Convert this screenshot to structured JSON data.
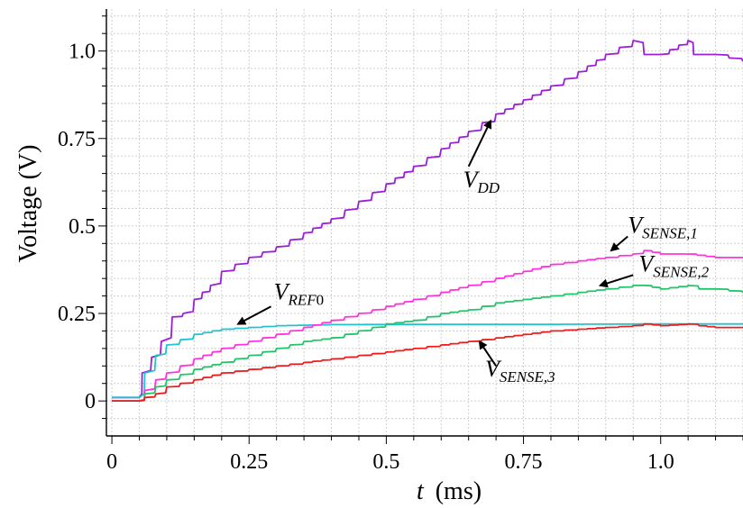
{
  "chart_data": {
    "type": "line",
    "xlabel_var": "t",
    "xlabel_unit": "(ms)",
    "ylabel": "Voltage (V)",
    "xlim": [
      -0.01,
      1.15
    ],
    "ylim": [
      -0.1,
      1.12
    ],
    "xticks": [
      0,
      0.25,
      0.5,
      0.75,
      1.0
    ],
    "xtick_labels": [
      "0",
      "0.25",
      "0.5",
      "0.75",
      "1.0"
    ],
    "yticks": [
      0,
      0.25,
      0.5,
      0.75,
      1.0
    ],
    "ytick_labels": [
      "0",
      "0.25",
      "0.5",
      "0.75",
      "1.0"
    ],
    "grid": true,
    "series": [
      {
        "name": "VDD",
        "color": "#9b1fd6",
        "points": [
          [
            0,
            0.01
          ],
          [
            0.05,
            0.01
          ],
          [
            0.055,
            0.08
          ],
          [
            0.09,
            0.17
          ],
          [
            0.11,
            0.24
          ],
          [
            0.13,
            0.25
          ],
          [
            0.15,
            0.29
          ],
          [
            0.18,
            0.33
          ],
          [
            0.2,
            0.37
          ],
          [
            0.25,
            0.41
          ],
          [
            0.3,
            0.44
          ],
          [
            0.35,
            0.48
          ],
          [
            0.4,
            0.52
          ],
          [
            0.45,
            0.57
          ],
          [
            0.5,
            0.62
          ],
          [
            0.55,
            0.67
          ],
          [
            0.6,
            0.72
          ],
          [
            0.65,
            0.77
          ],
          [
            0.7,
            0.82
          ],
          [
            0.75,
            0.86
          ],
          [
            0.8,
            0.9
          ],
          [
            0.85,
            0.94
          ],
          [
            0.9,
            0.99
          ],
          [
            0.95,
            1.03
          ],
          [
            0.97,
            0.99
          ],
          [
            1.0,
            0.99
          ],
          [
            1.05,
            1.03
          ],
          [
            1.06,
            0.99
          ],
          [
            1.1,
            0.99
          ],
          [
            1.15,
            0.97
          ]
        ]
      },
      {
        "name": "VREF0",
        "color": "#1fc4d0",
        "points": [
          [
            0,
            0.01
          ],
          [
            0.05,
            0.01
          ],
          [
            0.06,
            0.08
          ],
          [
            0.08,
            0.13
          ],
          [
            0.1,
            0.16
          ],
          [
            0.15,
            0.19
          ],
          [
            0.2,
            0.205
          ],
          [
            0.25,
            0.21
          ],
          [
            0.3,
            0.215
          ],
          [
            0.4,
            0.218
          ],
          [
            0.6,
            0.219
          ],
          [
            0.8,
            0.219
          ],
          [
            1.0,
            0.22
          ],
          [
            1.15,
            0.22
          ]
        ]
      },
      {
        "name": "VSENSE,1",
        "color": "#ff33dd",
        "points": [
          [
            0,
            0.0
          ],
          [
            0.05,
            0.0
          ],
          [
            0.06,
            0.03
          ],
          [
            0.08,
            0.06
          ],
          [
            0.1,
            0.08
          ],
          [
            0.15,
            0.12
          ],
          [
            0.2,
            0.15
          ],
          [
            0.25,
            0.17
          ],
          [
            0.3,
            0.19
          ],
          [
            0.35,
            0.21
          ],
          [
            0.4,
            0.23
          ],
          [
            0.45,
            0.25
          ],
          [
            0.5,
            0.27
          ],
          [
            0.55,
            0.29
          ],
          [
            0.6,
            0.31
          ],
          [
            0.65,
            0.33
          ],
          [
            0.7,
            0.35
          ],
          [
            0.75,
            0.37
          ],
          [
            0.8,
            0.39
          ],
          [
            0.85,
            0.4
          ],
          [
            0.9,
            0.41
          ],
          [
            0.95,
            0.42
          ],
          [
            0.97,
            0.43
          ],
          [
            1.0,
            0.42
          ],
          [
            1.05,
            0.42
          ],
          [
            1.1,
            0.41
          ],
          [
            1.15,
            0.41
          ]
        ]
      },
      {
        "name": "VSENSE,2",
        "color": "#22c46a",
        "points": [
          [
            0,
            0.0
          ],
          [
            0.05,
            0.0
          ],
          [
            0.06,
            0.02
          ],
          [
            0.08,
            0.04
          ],
          [
            0.1,
            0.06
          ],
          [
            0.15,
            0.09
          ],
          [
            0.2,
            0.11
          ],
          [
            0.25,
            0.13
          ],
          [
            0.3,
            0.15
          ],
          [
            0.35,
            0.17
          ],
          [
            0.4,
            0.18
          ],
          [
            0.45,
            0.2
          ],
          [
            0.5,
            0.22
          ],
          [
            0.55,
            0.23
          ],
          [
            0.6,
            0.25
          ],
          [
            0.65,
            0.26
          ],
          [
            0.7,
            0.28
          ],
          [
            0.75,
            0.29
          ],
          [
            0.8,
            0.3
          ],
          [
            0.85,
            0.31
          ],
          [
            0.9,
            0.32
          ],
          [
            0.95,
            0.33
          ],
          [
            0.97,
            0.33
          ],
          [
            1.0,
            0.32
          ],
          [
            1.05,
            0.33
          ],
          [
            1.07,
            0.32
          ],
          [
            1.1,
            0.32
          ],
          [
            1.15,
            0.31
          ]
        ]
      },
      {
        "name": "VSENSE,3",
        "color": "#ee1c1c",
        "points": [
          [
            0,
            0.0
          ],
          [
            0.05,
            0.0
          ],
          [
            0.06,
            0.01
          ],
          [
            0.08,
            0.02
          ],
          [
            0.1,
            0.04
          ],
          [
            0.15,
            0.06
          ],
          [
            0.2,
            0.08
          ],
          [
            0.25,
            0.09
          ],
          [
            0.3,
            0.1
          ],
          [
            0.35,
            0.11
          ],
          [
            0.4,
            0.12
          ],
          [
            0.45,
            0.13
          ],
          [
            0.5,
            0.14
          ],
          [
            0.55,
            0.15
          ],
          [
            0.6,
            0.16
          ],
          [
            0.65,
            0.17
          ],
          [
            0.7,
            0.18
          ],
          [
            0.75,
            0.19
          ],
          [
            0.8,
            0.2
          ],
          [
            0.85,
            0.205
          ],
          [
            0.9,
            0.21
          ],
          [
            0.95,
            0.215
          ],
          [
            0.97,
            0.22
          ],
          [
            1.0,
            0.215
          ],
          [
            1.05,
            0.22
          ],
          [
            1.07,
            0.215
          ],
          [
            1.1,
            0.21
          ],
          [
            1.15,
            0.21
          ]
        ]
      }
    ],
    "annotations": [
      {
        "id": "vdd",
        "main": "V",
        "sub": "DD",
        "sub_tail": "",
        "point": [
          0.69,
          0.8
        ],
        "arrow_from": [
          0.65,
          0.67
        ],
        "text_at": [
          0.64,
          0.61
        ]
      },
      {
        "id": "vref0",
        "main": "V",
        "sub": "REF",
        "sub_tail": "0",
        "point": [
          0.23,
          0.22
        ],
        "arrow_from": [
          0.29,
          0.27
        ],
        "text_at": [
          0.295,
          0.29
        ]
      },
      {
        "id": "vsense1",
        "main": "V",
        "sub": "SENSE,1",
        "sub_tail": "",
        "point": [
          0.91,
          0.43
        ],
        "arrow_from": [
          0.94,
          0.47
        ],
        "text_at": [
          0.94,
          0.48
        ]
      },
      {
        "id": "vsense2",
        "main": "V",
        "sub": "SENSE,2",
        "sub_tail": "",
        "point": [
          0.89,
          0.33
        ],
        "arrow_from": [
          0.95,
          0.36
        ],
        "text_at": [
          0.96,
          0.37
        ]
      },
      {
        "id": "vsense3",
        "main": "V",
        "sub": "SENSE,3",
        "sub_tail": "",
        "point": [
          0.67,
          0.17
        ],
        "arrow_from": [
          0.7,
          0.1
        ],
        "text_at": [
          0.68,
          0.07
        ]
      }
    ]
  }
}
